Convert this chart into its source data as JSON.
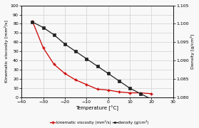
{
  "temp_x": [
    -35,
    -30,
    -25,
    -20,
    -15,
    -10,
    -5,
    0,
    5,
    10,
    15,
    20
  ],
  "visc_y": [
    83,
    54,
    36,
    26,
    19,
    14,
    9,
    8,
    6,
    5,
    5,
    4
  ],
  "dens_y": [
    1.1005,
    1.099,
    1.097,
    1.0945,
    1.0925,
    1.0905,
    1.0885,
    1.0865,
    1.0845,
    1.0825,
    1.081,
    1.0795
  ],
  "xlim": [
    -40,
    30
  ],
  "ylim_left": [
    0,
    100
  ],
  "ylim_right": [
    1.08,
    1.105
  ],
  "yticks_left": [
    0,
    10,
    20,
    30,
    40,
    50,
    60,
    70,
    80,
    90,
    100
  ],
  "yticks_right": [
    1.08,
    1.085,
    1.09,
    1.095,
    1.1,
    1.105
  ],
  "xticks": [
    -40,
    -30,
    -20,
    -10,
    0,
    10,
    20,
    30
  ],
  "xlabel": "Temperature [°C]",
  "ylabel_left": "Kinematic viscosity [mm²/s]",
  "ylabel_right": "Density [g/cm³]",
  "legend_visc": "kinematic viscosity (mm²/s)",
  "legend_dens": "density (g/cm³)",
  "color_visc": "#cc0000",
  "color_dens": "#222222",
  "grid_color": "#d0d0d0",
  "bg_color": "#f8f8f8"
}
